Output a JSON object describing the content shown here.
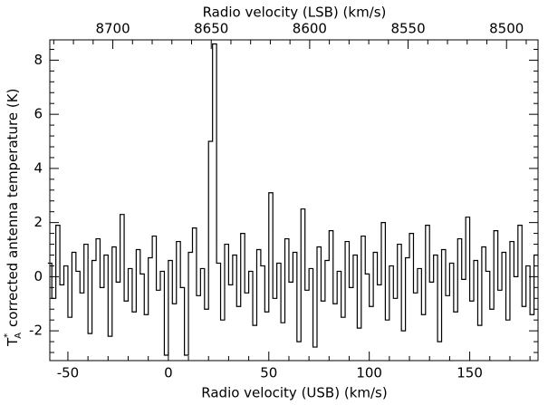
{
  "chart_data": {
    "type": "line",
    "xlabel": "Radio velocity (USB) (km/s)",
    "x2label": "Radio velocity (LSB) (km/s)",
    "ylabel": "corrected antenna temperature (K)",
    "ylabel_symbol": "T",
    "ylabel_symbol_sup": "*",
    "ylabel_symbol_sub": "A",
    "xlim": [
      -59,
      184
    ],
    "xticks": [
      -50,
      0,
      50,
      100,
      150
    ],
    "x2lim": [
      8732,
      8484
    ],
    "x2ticks": [
      8700,
      8650,
      8600,
      8550,
      8500
    ],
    "ylim": [
      -3.1,
      8.75
    ],
    "yticks": [
      -2,
      0,
      2,
      4,
      6,
      8
    ],
    "grid": false,
    "color": "#000000",
    "x": [
      -59,
      -57,
      -55,
      -53,
      -51,
      -49,
      -47,
      -45,
      -43,
      -41,
      -39,
      -37,
      -35,
      -33,
      -31,
      -29,
      -27,
      -25,
      -23,
      -21,
      -19,
      -17,
      -15,
      -13,
      -11,
      -9,
      -7,
      -5,
      -3,
      -1,
      1,
      3,
      5,
      7,
      9,
      11,
      13,
      15,
      17,
      19,
      21,
      23,
      25,
      27,
      29,
      31,
      33,
      35,
      37,
      39,
      41,
      43,
      45,
      47,
      49,
      51,
      53,
      55,
      57,
      59,
      61,
      63,
      65,
      67,
      69,
      71,
      73,
      75,
      77,
      79,
      81,
      83,
      85,
      87,
      89,
      91,
      93,
      95,
      97,
      99,
      101,
      103,
      105,
      107,
      109,
      111,
      113,
      115,
      117,
      119,
      121,
      123,
      125,
      127,
      129,
      131,
      133,
      135,
      137,
      139,
      141,
      143,
      145,
      147,
      149,
      151,
      153,
      155,
      157,
      159,
      161,
      163,
      165,
      167,
      169,
      171,
      173,
      175,
      177,
      179,
      181,
      183
    ],
    "values": [
      0.5,
      -0.8,
      1.9,
      -0.3,
      0.4,
      -1.5,
      0.9,
      0.2,
      -0.6,
      1.2,
      -2.1,
      0.6,
      1.4,
      -0.4,
      0.8,
      -2.2,
      1.1,
      -0.2,
      2.3,
      -0.9,
      0.3,
      -1.3,
      1.0,
      0.1,
      -1.4,
      0.7,
      1.5,
      -0.5,
      0.2,
      -2.9,
      0.6,
      -1.0,
      1.3,
      -0.4,
      -2.9,
      0.9,
      1.8,
      -0.7,
      0.3,
      -1.2,
      5.0,
      8.6,
      0.5,
      -1.6,
      1.2,
      -0.3,
      0.8,
      -1.1,
      1.6,
      -0.6,
      0.2,
      -1.8,
      1.0,
      0.4,
      -1.3,
      3.1,
      -0.8,
      0.5,
      -1.7,
      1.4,
      -0.2,
      0.9,
      -2.4,
      2.5,
      -0.5,
      0.3,
      -2.6,
      1.1,
      -0.9,
      0.6,
      1.7,
      -1.0,
      0.2,
      -1.5,
      1.3,
      -0.4,
      0.8,
      -1.9,
      1.5,
      0.1,
      -1.1,
      0.9,
      -0.3,
      2.0,
      -1.6,
      0.4,
      -0.8,
      1.2,
      -2.0,
      0.7,
      1.6,
      -0.6,
      0.3,
      -1.4,
      1.9,
      -0.2,
      0.8,
      -2.4,
      1.0,
      -0.7,
      0.5,
      -1.3,
      1.4,
      -0.1,
      2.2,
      -0.9,
      0.6,
      -1.8,
      1.1,
      0.2,
      -1.2,
      1.7,
      -0.5,
      0.9,
      -1.6,
      1.3,
      0.0,
      1.9,
      -1.1,
      0.4,
      -1.4,
      0.8
    ]
  }
}
